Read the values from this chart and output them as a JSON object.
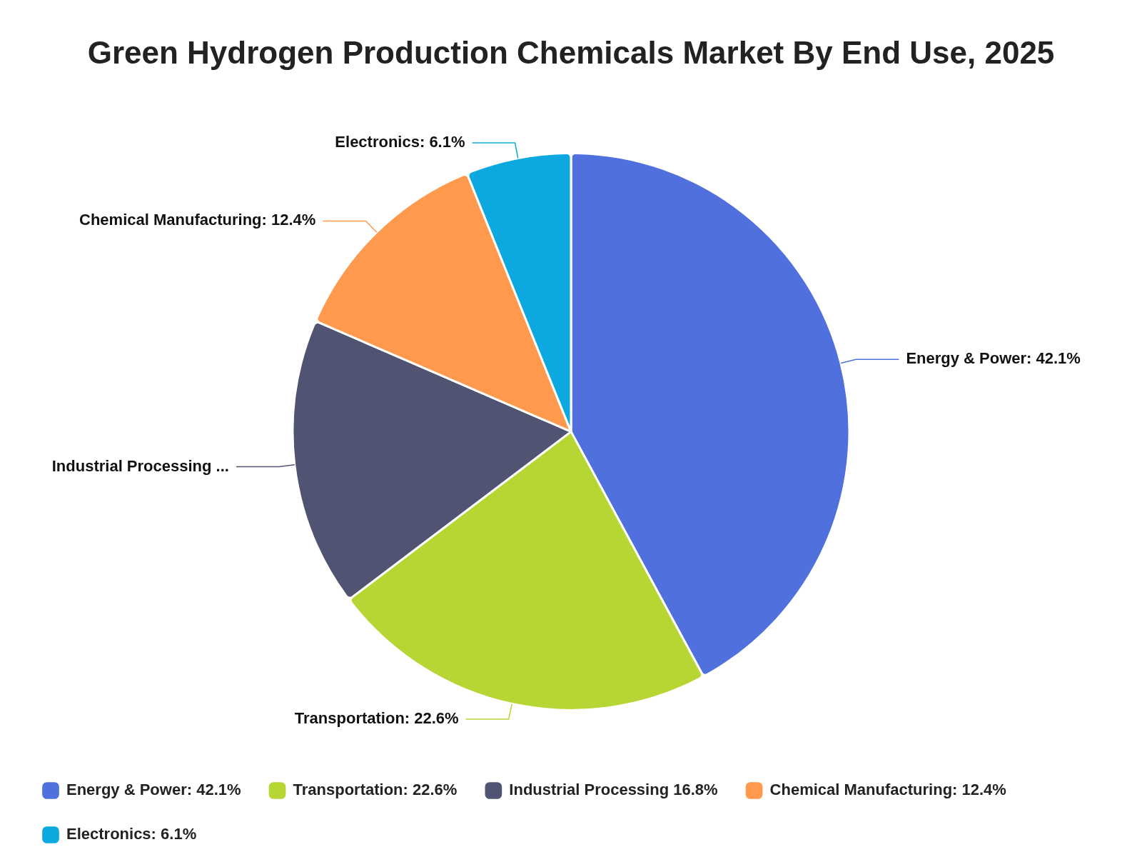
{
  "chart_data": {
    "type": "pie",
    "title": "Green Hydrogen Production Chemicals Market By End Use, 2025",
    "categories": [
      "Energy & Power: 42.1%",
      "Transportation: 22.6%",
      "Industrial Processing 16.8%",
      "Chemical Manufacturing: 12.4%",
      "Electronics: 6.1%"
    ],
    "values": [
      42.1,
      22.6,
      16.8,
      12.4,
      6.1
    ],
    "value_labels": [
      "Energy & Power: 42.1%",
      "Transportation: 22.6%",
      "Industrial Processing ...",
      "Chemical Manufacturing: 12.4%",
      "Electronics: 6.1%"
    ],
    "colors": [
      "#5070dd",
      "#b6d634",
      "#505372",
      "#ff994d",
      "#0ca8df"
    ],
    "legend": "bottom"
  }
}
